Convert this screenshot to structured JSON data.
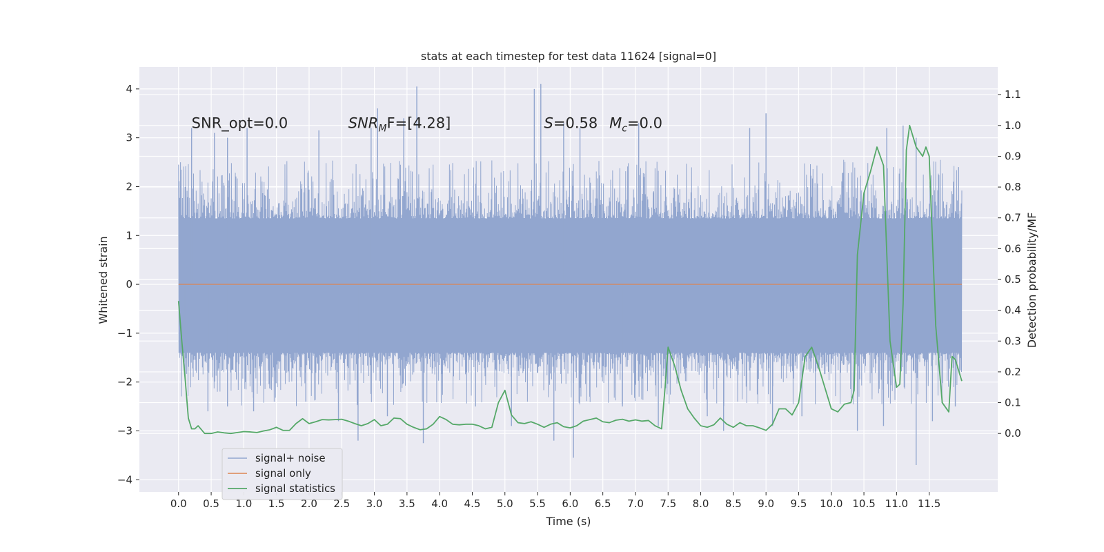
{
  "chart_data": {
    "type": "line",
    "title": "stats at each timestep for test data 11624 [signal=0]",
    "xlabel": "Time (s)",
    "ylabel": "Whitened strain",
    "y2label": "Detection probability/MF",
    "xlim": [
      -0.6,
      12.55
    ],
    "ylim": [
      -4.25,
      4.45
    ],
    "y2lim": [
      -0.19,
      1.19
    ],
    "x_ticks": [
      0.0,
      0.5,
      1.0,
      1.5,
      2.0,
      2.5,
      3.0,
      3.5,
      4.0,
      4.5,
      5.0,
      5.5,
      6.0,
      6.5,
      7.0,
      7.5,
      8.0,
      8.5,
      9.0,
      9.5,
      10.0,
      10.5,
      11.0,
      11.5
    ],
    "x_tick_labels": [
      "0.0",
      "0.5",
      "1.0",
      "1.5",
      "2.0",
      "2.5",
      "3.0",
      "3.5",
      "4.0",
      "4.5",
      "5.0",
      "5.5",
      "6.0",
      "6.5",
      "7.0",
      "7.5",
      "8.0",
      "8.5",
      "9.0",
      "9.5",
      "10.0",
      "10.5",
      "11.0",
      "11.5"
    ],
    "y_ticks": [
      4,
      3,
      2,
      1,
      0,
      -1,
      -2,
      -3,
      -4
    ],
    "y_tick_labels": [
      "4",
      "3",
      "2",
      "1",
      "0",
      "−1",
      "−2",
      "−3",
      "−4"
    ],
    "y2_ticks": [
      1.1,
      1.0,
      0.9,
      0.8,
      0.7,
      0.6,
      0.5,
      0.4,
      0.3,
      0.2,
      0.1,
      0.0
    ],
    "y2_tick_labels": [
      "1.1",
      "1.0",
      "0.9",
      "0.8",
      "0.7",
      "0.6",
      "0.5",
      "0.4",
      "0.3",
      "0.2",
      "0.1",
      "0.0"
    ],
    "grid": true,
    "legend_position": "lower-left",
    "annotations": [
      {
        "text": "SNR_opt=0.0",
        "x": 0.2,
        "y": 3.3
      },
      {
        "main": "SNR",
        "sub": "M",
        "rest": "F=[4.28]",
        "x": 2.6,
        "y": 3.3
      },
      {
        "main": "S",
        "rest": "=0.58",
        "x": 5.6,
        "y": 3.3
      },
      {
        "main": "M",
        "sub": "c",
        "rest": "=0.0",
        "x": 6.6,
        "y": 3.3
      }
    ],
    "series": [
      {
        "name": "signal+ noise",
        "axis": "left",
        "color": "#92a6cf",
        "kind": "noise",
        "x_range": [
          0.0,
          12.0
        ],
        "band": [
          -1.45,
          1.4
        ],
        "peaks_positive": [
          [
            0.2,
            3.2
          ],
          [
            0.55,
            3.1
          ],
          [
            0.75,
            3.0
          ],
          [
            1.05,
            3.2
          ],
          [
            2.15,
            3.15
          ],
          [
            2.95,
            3.2
          ],
          [
            3.05,
            3.6
          ],
          [
            3.45,
            3.4
          ],
          [
            3.65,
            4.05
          ],
          [
            5.45,
            4.0
          ],
          [
            5.55,
            4.1
          ],
          [
            5.9,
            3.3
          ],
          [
            6.15,
            3.2
          ],
          [
            7.05,
            3.3
          ],
          [
            8.75,
            3.2
          ],
          [
            9.0,
            3.5
          ],
          [
            10.85,
            3.2
          ],
          [
            11.1,
            3.25
          ],
          [
            11.3,
            3.0
          ],
          [
            11.95,
            2.4
          ]
        ],
        "peaks_negative": [
          [
            0.1,
            -1.9
          ],
          [
            0.45,
            -2.6
          ],
          [
            0.75,
            -2.5
          ],
          [
            1.15,
            -2.6
          ],
          [
            1.95,
            -2.4
          ],
          [
            2.45,
            -2.8
          ],
          [
            2.75,
            -3.2
          ],
          [
            3.2,
            -2.7
          ],
          [
            3.75,
            -3.25
          ],
          [
            4.55,
            -2.5
          ],
          [
            5.1,
            -2.9
          ],
          [
            5.75,
            -3.2
          ],
          [
            6.05,
            -3.55
          ],
          [
            6.3,
            -2.3
          ],
          [
            6.8,
            -2.5
          ],
          [
            7.35,
            -2.9
          ],
          [
            8.1,
            -2.7
          ],
          [
            8.35,
            -3.0
          ],
          [
            9.1,
            -2.9
          ],
          [
            9.55,
            -2.7
          ],
          [
            10.4,
            -3.0
          ],
          [
            10.8,
            -2.9
          ],
          [
            11.3,
            -3.7
          ],
          [
            11.55,
            -2.8
          ],
          [
            11.9,
            -2.5
          ]
        ]
      },
      {
        "name": "signal only",
        "axis": "left",
        "color": "#dd8452",
        "x": [
          0.0,
          12.0
        ],
        "y": [
          0.0,
          0.0
        ]
      },
      {
        "name": "signal statistics",
        "axis": "right",
        "color": "#55a868",
        "x": [
          0.0,
          0.05,
          0.1,
          0.15,
          0.2,
          0.25,
          0.3,
          0.4,
          0.5,
          0.6,
          0.7,
          0.8,
          0.9,
          1.0,
          1.1,
          1.2,
          1.3,
          1.4,
          1.5,
          1.6,
          1.7,
          1.8,
          1.9,
          2.0,
          2.1,
          2.2,
          2.3,
          2.4,
          2.5,
          2.6,
          2.7,
          2.8,
          2.9,
          3.0,
          3.1,
          3.2,
          3.3,
          3.4,
          3.5,
          3.6,
          3.7,
          3.8,
          3.9,
          4.0,
          4.1,
          4.2,
          4.3,
          4.4,
          4.5,
          4.6,
          4.7,
          4.8,
          4.9,
          5.0,
          5.1,
          5.2,
          5.3,
          5.4,
          5.5,
          5.6,
          5.7,
          5.8,
          5.9,
          6.0,
          6.1,
          6.2,
          6.3,
          6.4,
          6.5,
          6.6,
          6.7,
          6.8,
          6.9,
          7.0,
          7.1,
          7.2,
          7.3,
          7.4,
          7.45,
          7.5,
          7.6,
          7.7,
          7.8,
          7.9,
          8.0,
          8.1,
          8.2,
          8.3,
          8.4,
          8.5,
          8.6,
          8.7,
          8.8,
          8.9,
          9.0,
          9.1,
          9.2,
          9.3,
          9.4,
          9.5,
          9.6,
          9.7,
          9.8,
          9.9,
          10.0,
          10.1,
          10.2,
          10.3,
          10.35,
          10.4,
          10.5,
          10.6,
          10.7,
          10.8,
          10.9,
          11.0,
          11.05,
          11.1,
          11.15,
          11.2,
          11.3,
          11.4,
          11.45,
          11.5,
          11.6,
          11.7,
          11.8,
          11.85,
          11.9,
          12.0
        ],
        "y": [
          0.43,
          0.3,
          0.18,
          0.05,
          0.015,
          0.015,
          0.025,
          0.0,
          0.0,
          0.005,
          0.002,
          0.0,
          0.003,
          0.006,
          0.005,
          0.003,
          0.008,
          0.012,
          0.02,
          0.01,
          0.01,
          0.032,
          0.048,
          0.032,
          0.038,
          0.045,
          0.044,
          0.045,
          0.046,
          0.04,
          0.032,
          0.025,
          0.032,
          0.045,
          0.025,
          0.03,
          0.05,
          0.048,
          0.03,
          0.02,
          0.012,
          0.015,
          0.03,
          0.055,
          0.045,
          0.03,
          0.028,
          0.03,
          0.03,
          0.025,
          0.015,
          0.02,
          0.1,
          0.14,
          0.06,
          0.035,
          0.032,
          0.038,
          0.03,
          0.02,
          0.03,
          0.035,
          0.022,
          0.018,
          0.025,
          0.04,
          0.045,
          0.05,
          0.038,
          0.035,
          0.043,
          0.046,
          0.04,
          0.044,
          0.04,
          0.042,
          0.025,
          0.015,
          0.14,
          0.28,
          0.22,
          0.14,
          0.08,
          0.05,
          0.025,
          0.02,
          0.028,
          0.05,
          0.03,
          0.02,
          0.035,
          0.025,
          0.025,
          0.018,
          0.01,
          0.03,
          0.08,
          0.08,
          0.06,
          0.1,
          0.25,
          0.28,
          0.22,
          0.15,
          0.08,
          0.07,
          0.095,
          0.1,
          0.14,
          0.58,
          0.78,
          0.85,
          0.93,
          0.87,
          0.3,
          0.15,
          0.16,
          0.42,
          0.92,
          1.0,
          0.93,
          0.9,
          0.93,
          0.9,
          0.35,
          0.1,
          0.07,
          0.25,
          0.24,
          0.17
        ]
      }
    ]
  }
}
